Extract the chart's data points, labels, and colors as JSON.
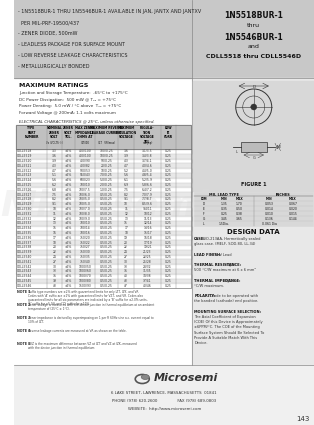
{
  "white": "#ffffff",
  "black": "#000000",
  "dark_gray": "#444444",
  "header_bg": "#c8c8c8",
  "body_bg": "#ffffff",
  "right_panel_bg": "#e0e0e0",
  "table_header_bg": "#c0c0c0",
  "table_alt_bg": "#f0f0f0",
  "header_left_text": [
    "- 1N5518BUR-1 THRU 1N5546BUR-1 AVAILABLE IN JAN, JANTX AND JANTXV",
    "  PER MIL-PRF-19500/437",
    "- ZENER DIODE, 500mW",
    "- LEADLESS PACKAGE FOR SURFACE MOUNT",
    "- LOW REVERSE LEAKAGE CHARACTERISTICS",
    "- METALLURGICALLY BONDED"
  ],
  "header_right_line1": "1N5518BUR-1",
  "header_right_line2": "thru",
  "header_right_line3": "1N5546BUR-1",
  "header_right_line4": "and",
  "header_right_line5": "CDLL5518 thru CDLL5546D",
  "max_ratings_title": "MAXIMUM RATINGS",
  "max_ratings_lines": [
    "Junction and Storage Temperature:  -65°C to +175°C",
    "DC Power Dissipation:  500 mW @ T₂₃ = +75°C",
    "Power Derating:  5.0 mW / °C above  T₂₃ = +75°C",
    "Forward Voltage @ 200mA: 1.1 volts maximum"
  ],
  "elec_char_title": "ELECTRICAL CHARACTERISTICS @ 25°C, unless otherwise specified.",
  "figure_label": "FIGURE 1",
  "design_data_title": "DESIGN DATA",
  "design_data_lines": [
    [
      "CASE:",
      " DO-213AA, Hermetically sealed"
    ],
    [
      "",
      "glass case. (MELF, SOD-80, LL-34)"
    ],
    [
      "",
      ""
    ],
    [
      "LEAD FINISH:",
      " Tin / Lead"
    ],
    [
      "",
      ""
    ],
    [
      "THERMAL RESISTANCE:",
      " (θJC)"
    ],
    [
      "",
      "500 °C/W maximum at 6 x 6 mm²"
    ],
    [
      "",
      ""
    ],
    [
      "THERMAL IMPEDANCE:",
      " (θJC) in"
    ],
    [
      "",
      "°C/W maximum."
    ],
    [
      "",
      ""
    ],
    [
      "POLARITY:",
      " Diode to be operated with"
    ],
    [
      "",
      "the banded (cathode) end positive."
    ],
    [
      "",
      ""
    ],
    [
      "MOUNTING SURFACE SELECTION:",
      ""
    ],
    [
      "",
      "The Axial Coefficient of Expansion"
    ],
    [
      "",
      "(COE) Of this Device is Approximately"
    ],
    [
      "",
      "±6PPM/°C. The COE of the Mounting"
    ],
    [
      "",
      "Surface System Should Be Selected To"
    ],
    [
      "",
      "Provide A Suitable Match With This"
    ],
    [
      "",
      "Device."
    ]
  ],
  "footer_logo_text": "Microsemi",
  "footer_line1": "6 LAKE STREET, LAWRENCE, MASSACHUSETTS  01841",
  "footer_line2": "PHONE (978) 620-2600                FAX (978) 689-0803",
  "footer_line3": "WEBSITE:  http://www.microsemi.com",
  "page_number": "143",
  "dim_rows": [
    [
      "DIM",
      "MIN",
      "MAX",
      "MIN",
      "MAX"
    ],
    [
      "D",
      "1.35",
      "1.70",
      "0.053",
      "0.067"
    ],
    [
      "E",
      "0.35",
      "0.50",
      "0.014",
      "0.020"
    ],
    [
      "F",
      "0.25",
      "0.38",
      "0.010",
      "0.015"
    ],
    [
      "G",
      "3.45",
      "3.65",
      "0.136",
      "0.144"
    ],
    [
      "L",
      "1.5Dia.",
      "",
      "0.061 Dia",
      ""
    ]
  ],
  "table_headers_row1": [
    "TYPE",
    "NOMINAL",
    "ZENER",
    "MAX ZENER IMPEDANCE",
    "MAXIMUM REVERSE LEAKAGE CURRENT",
    "MAXIMUM",
    "REGULA-",
    "LOW"
  ],
  "table_headers_row2": [
    "PART",
    "ZENER",
    "VOLTAGE",
    "OHMS AT IZT/IZK",
    "µA AT VR",
    "REGULATION",
    "TION",
    "IZ"
  ],
  "table_headers_row3": [
    "NUMBER",
    "VOLTAGE",
    "TOLERANCE",
    "",
    "",
    "VOLTAGE",
    "VOLTAGE",
    "CURRENT"
  ],
  "table_rows": [
    [
      "CDLL5518",
      "3.3",
      "±5%",
      "400/100",
      "100/0.25",
      "3.6",
      "3.1/3.5",
      "0.25"
    ],
    [
      "CDLL5519",
      "3.6",
      "±5%",
      "400/100",
      "100/0.25",
      "3.9",
      "3.4/3.8",
      "0.25"
    ],
    [
      "CDLL5520",
      "3.9",
      "±5%",
      "400/90",
      "50/0.25",
      "4.3",
      "3.7/4.1",
      "0.25"
    ],
    [
      "CDLL5521",
      "4.3",
      "±5%",
      "400/82",
      "20/0.25",
      "4.7",
      "4.0/4.6",
      "0.25"
    ],
    [
      "CDLL5522",
      "4.7",
      "±5%",
      "500/53",
      "10/0.25",
      "5.2",
      "4.4/5.0",
      "0.25"
    ],
    [
      "CDLL5523",
      "5.1",
      "±5%",
      "550/43",
      "7.0/0.25",
      "5.6",
      "4.8/5.4",
      "0.25"
    ],
    [
      "CDLL5524",
      "5.6",
      "±5%",
      "600/23",
      "5.0/0.25",
      "6.1",
      "5.2/5.9",
      "0.25"
    ],
    [
      "CDLL5525",
      "6.2",
      "±5%",
      "700/10",
      "2.0/0.25",
      "6.9",
      "5.8/6.6",
      "0.25"
    ],
    [
      "CDLL5526",
      "6.8",
      "±5%",
      "700/7.5",
      "1.0/0.25",
      "7.5",
      "6.4/7.2",
      "0.25"
    ],
    [
      "CDLL5527",
      "7.5",
      "±5%",
      "700/6.0",
      "0.5/0.25",
      "8.2",
      "7.0/7.9",
      "0.25"
    ],
    [
      "CDLL5528",
      "8.2",
      "±5%",
      "700/5.0",
      "0.5/0.25",
      "9.1",
      "7.7/8.7",
      "0.25"
    ],
    [
      "CDLL5529",
      "9.1",
      "±5%",
      "700/5.0",
      "0.5/0.25",
      "10",
      "8.5/9.6",
      "0.25"
    ],
    [
      "CDLL5530",
      "10",
      "±5%",
      "700/7.0",
      "0.5/0.25",
      "11",
      "9.4/11",
      "0.25"
    ],
    [
      "CDLL5531",
      "11",
      "±5%",
      "700/8.0",
      "0.5/0.25",
      "12",
      "10/12",
      "0.25"
    ],
    [
      "CDLL5532",
      "12",
      "±5%",
      "700/9.0",
      "0.5/0.25",
      "13",
      "11/13",
      "0.25"
    ],
    [
      "CDLL5533",
      "13",
      "±5%",
      "700/10",
      "0.5/0.25",
      "15",
      "12/14",
      "0.25"
    ],
    [
      "CDLL5534",
      "15",
      "±5%",
      "700/14",
      "0.5/0.25",
      "17",
      "14/16",
      "0.25"
    ],
    [
      "CDLL5535",
      "16",
      "±5%",
      "700/16",
      "0.5/0.25",
      "18",
      "15/17",
      "0.25"
    ],
    [
      "CDLL5536",
      "17",
      "±5%",
      "750/20",
      "0.5/0.25",
      "19",
      "16/18",
      "0.25"
    ],
    [
      "CDLL5537",
      "18",
      "±5%",
      "750/22",
      "0.5/0.25",
      "20",
      "17/19",
      "0.25"
    ],
    [
      "CDLL5538",
      "20",
      "±5%",
      "750/27",
      "0.5/0.25",
      "22",
      "19/21",
      "0.25"
    ],
    [
      "CDLL5539",
      "22",
      "±5%",
      "750/30",
      "0.5/0.25",
      "24",
      "21/23",
      "0.25"
    ],
    [
      "CDLL5540",
      "24",
      "±5%",
      "750/35",
      "0.5/0.25",
      "27",
      "22/25",
      "0.25"
    ],
    [
      "CDLL5541",
      "27",
      "±5%",
      "750/40",
      "0.5/0.25",
      "30",
      "25/28",
      "0.25"
    ],
    [
      "CDLL5542",
      "30",
      "±5%",
      "1000/50",
      "0.5/0.25",
      "33",
      "28/32",
      "0.25"
    ],
    [
      "CDLL5543",
      "33",
      "±5%",
      "1000/60",
      "0.5/0.25",
      "36",
      "31/35",
      "0.25"
    ],
    [
      "CDLL5544",
      "36",
      "±5%",
      "1000/70",
      "0.5/0.25",
      "40",
      "34/38",
      "0.25"
    ],
    [
      "CDLL5545",
      "39",
      "±5%",
      "1000/80",
      "0.5/0.25",
      "43",
      "37/41",
      "0.25"
    ],
    [
      "CDLL5546",
      "43",
      "±5%",
      "1500/93",
      "0.5/0.25",
      "47",
      "40/46",
      "0.25"
    ]
  ],
  "notes": [
    [
      "NOTE 1",
      "Suffix type numbers are ±2% with guaranteed limits for only IZT, IZK, and VR.",
      "Codes with 'A' suffix are ±1% with guaranteed limits for VZT, and VR. Codes also",
      "guaranteed limits for all six parameters are indicated by a 'B' suffix for ±2.0% units,",
      "'C' suffix for ±5.0% and 'D' suffix for ±10%."
    ],
    [
      "NOTE 2",
      "Zener voltage is measured with the device junction in thermal equilibrium at an ambient",
      "temperature of (25°C ± 1°C)."
    ],
    [
      "NOTE 3",
      "Zener impedance is derived by superimposing on 1 per R 60Hz sine a.c. current equal to",
      "10% of IZT."
    ],
    [
      "NOTE 4",
      "Reverse leakage currents are measured at VR as shown on the table."
    ],
    [
      "NOTE 5",
      "ΔVZ is the maximum difference between VZ at IZT and VZ at IZK, measured",
      "with the device junction in thermal equilibrium."
    ]
  ]
}
